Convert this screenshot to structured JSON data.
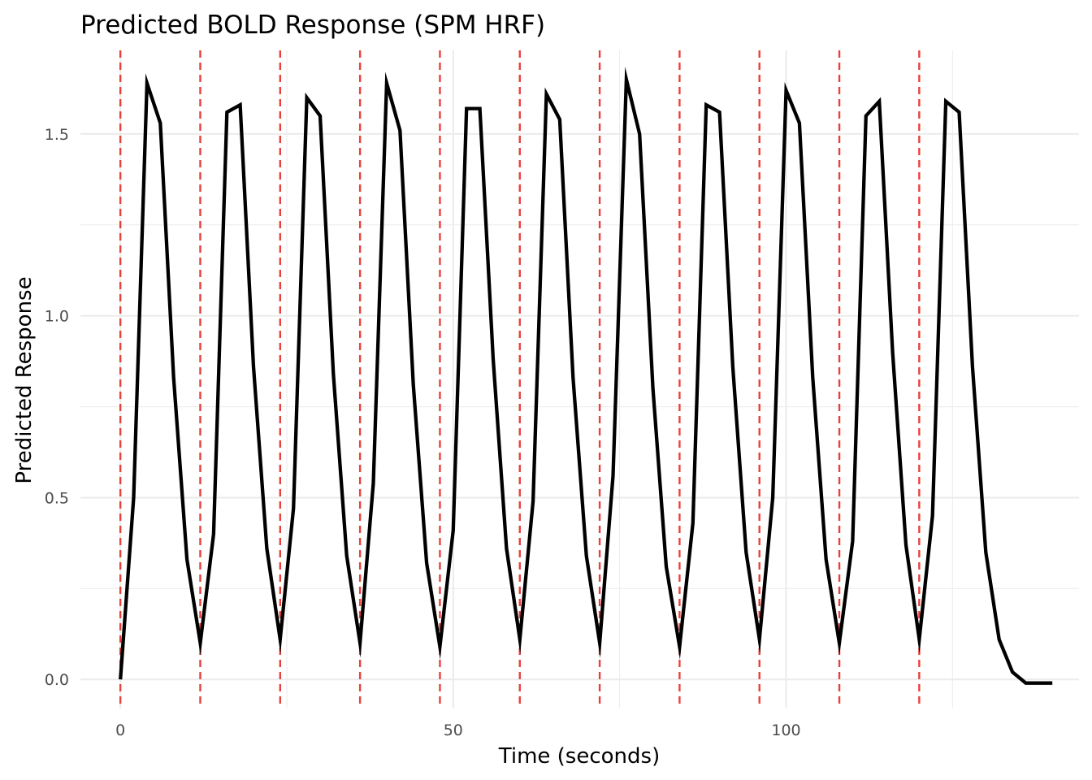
{
  "chart_data": {
    "type": "line",
    "title": "Predicted BOLD Response (SPM HRF)",
    "xlabel": "Time (seconds)",
    "ylabel": "Predicted Response",
    "xlim": [
      -6,
      144
    ],
    "ylim": [
      -0.08,
      1.73
    ],
    "x_ticks": [
      0,
      50,
      100
    ],
    "x_tick_labels": [
      "0",
      "50",
      "100"
    ],
    "y_ticks": [
      0.0,
      0.5,
      1.0,
      1.5
    ],
    "y_tick_labels": [
      "0.0",
      "0.5",
      "1.0",
      "1.5"
    ],
    "grid": true,
    "legend": "none",
    "colors": {
      "line": "#000000",
      "onset": "#e8413c",
      "grid": "#ebebeb"
    },
    "onsets": [
      0,
      12,
      24,
      36,
      48,
      60,
      72,
      84,
      96,
      108,
      120
    ],
    "series": [
      {
        "x": [
          0,
          2,
          4,
          6,
          8,
          10,
          12,
          14,
          16,
          18,
          20,
          22,
          24,
          26,
          28,
          30,
          32,
          34,
          36,
          38,
          40,
          42,
          44,
          46,
          48,
          50,
          52,
          54,
          56,
          58,
          60,
          62,
          64,
          66,
          68,
          70,
          72,
          74,
          76,
          78,
          80,
          82,
          84,
          86,
          88,
          90,
          92,
          94,
          96,
          98,
          100,
          102,
          104,
          106,
          108,
          110,
          112,
          114,
          116,
          118,
          120,
          122,
          124,
          126,
          128,
          130,
          132,
          134,
          136,
          138,
          140
        ],
        "y": [
          0.0,
          0.5,
          1.64,
          1.53,
          0.83,
          0.33,
          0.1,
          0.4,
          1.56,
          1.58,
          0.86,
          0.36,
          0.11,
          0.47,
          1.6,
          1.55,
          0.84,
          0.34,
          0.1,
          0.54,
          1.64,
          1.51,
          0.81,
          0.32,
          0.09,
          0.41,
          1.57,
          1.57,
          0.88,
          0.36,
          0.11,
          0.49,
          1.61,
          1.54,
          0.83,
          0.34,
          0.1,
          0.56,
          1.65,
          1.5,
          0.8,
          0.31,
          0.09,
          0.43,
          1.58,
          1.56,
          0.86,
          0.35,
          0.11,
          0.5,
          1.62,
          1.53,
          0.83,
          0.33,
          0.1,
          0.38,
          1.55,
          1.59,
          0.9,
          0.37,
          0.11,
          0.45,
          1.59,
          1.56,
          0.86,
          0.35,
          0.11,
          0.02,
          -0.01,
          -0.01,
          -0.01
        ]
      }
    ]
  }
}
